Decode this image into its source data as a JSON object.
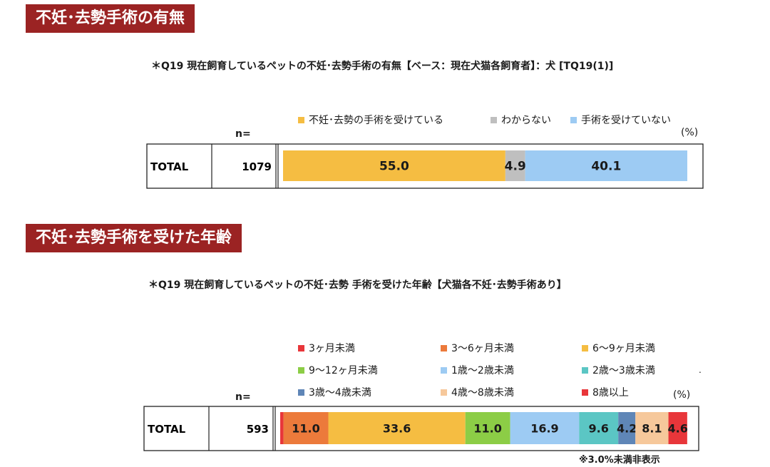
{
  "sections": [
    {
      "heading": "不妊･去勢手術の有無",
      "question": "＊Q19  現在飼育しているペットの不妊･去勢手術の有無【ベース：現在犬猫各飼育者】：犬 [TQ19(1)]"
    },
    {
      "heading": "不妊･去勢手術を受けた年齢",
      "question": "＊Q19   現在飼育しているペットの不妊･去勢  手術を受けた年齢【犬猫各不妊･去勢手術あり】"
    }
  ],
  "n_label": "n=",
  "unit_label": "(%)",
  "footnote": "※3.0%未満非表示",
  "stray_mark": ".",
  "chart_data": [
    {
      "type": "bar",
      "orientation": "horizontal",
      "stacked": true,
      "xlim": [
        0,
        100
      ],
      "row_label": "TOTAL",
      "n": "1079",
      "legend_placement": "top",
      "series": [
        {
          "name": "不妊･去勢の手術を受けている",
          "value": 55.0,
          "label": "55.0",
          "color": "#f5bd42"
        },
        {
          "name": "わからない",
          "value": 4.9,
          "label": "4.9",
          "color": "#bfbfbf"
        },
        {
          "name": "手術を受けていない",
          "value": 40.1,
          "label": "40.1",
          "color": "#9dcbf3"
        }
      ]
    },
    {
      "type": "bar",
      "orientation": "horizontal",
      "stacked": true,
      "xlim": [
        0,
        100
      ],
      "row_label": "TOTAL",
      "n": "593",
      "legend_placement": "top",
      "series": [
        {
          "name": "3ヶ月未満",
          "value": 0.8,
          "label": "",
          "color": "#e8363a"
        },
        {
          "name": "3～6ヶ月未満",
          "value": 11.0,
          "label": "11.0",
          "color": "#ec7a3b"
        },
        {
          "name": "6～9ヶ月未満",
          "value": 33.6,
          "label": "33.6",
          "color": "#f5bd42"
        },
        {
          "name": "9～12ヶ月未満",
          "value": 11.0,
          "label": "11.0",
          "color": "#8ccd46"
        },
        {
          "name": "1歳～2歳未満",
          "value": 16.9,
          "label": "16.9",
          "color": "#9dcbf3"
        },
        {
          "name": "2歳～3歳未満",
          "value": 9.6,
          "label": "9.6",
          "color": "#5bc6c4"
        },
        {
          "name": "3歳～4歳未満",
          "value": 4.2,
          "label": "4.2",
          "color": "#5f86b7"
        },
        {
          "name": "4歳～8歳未満",
          "value": 8.1,
          "label": "8.1",
          "color": "#f6c89b"
        },
        {
          "name": "8歳以上",
          "value": 4.6,
          "label": "4.6",
          "color": "#e8363a"
        }
      ]
    }
  ]
}
